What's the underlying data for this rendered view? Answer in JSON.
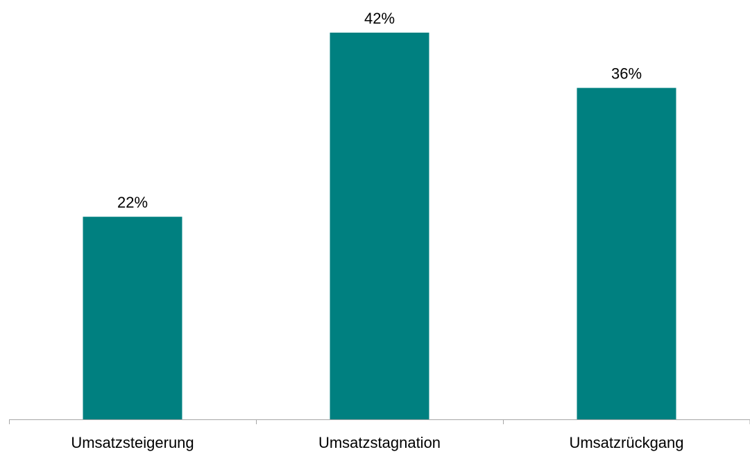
{
  "chart_data": {
    "type": "bar",
    "categories": [
      "Umsatzsteigerung",
      "Umsatzstagnation",
      "Umsatzrückgang"
    ],
    "values": [
      22,
      42,
      36
    ],
    "value_labels": [
      "22%",
      "42%",
      "36%"
    ],
    "unit": "%",
    "title": "",
    "xlabel": "",
    "ylabel": "",
    "ylim": [
      0,
      42
    ],
    "grid": false,
    "legend": "none",
    "bar_color": "#008080",
    "axis_color": "#A6A6A6"
  }
}
